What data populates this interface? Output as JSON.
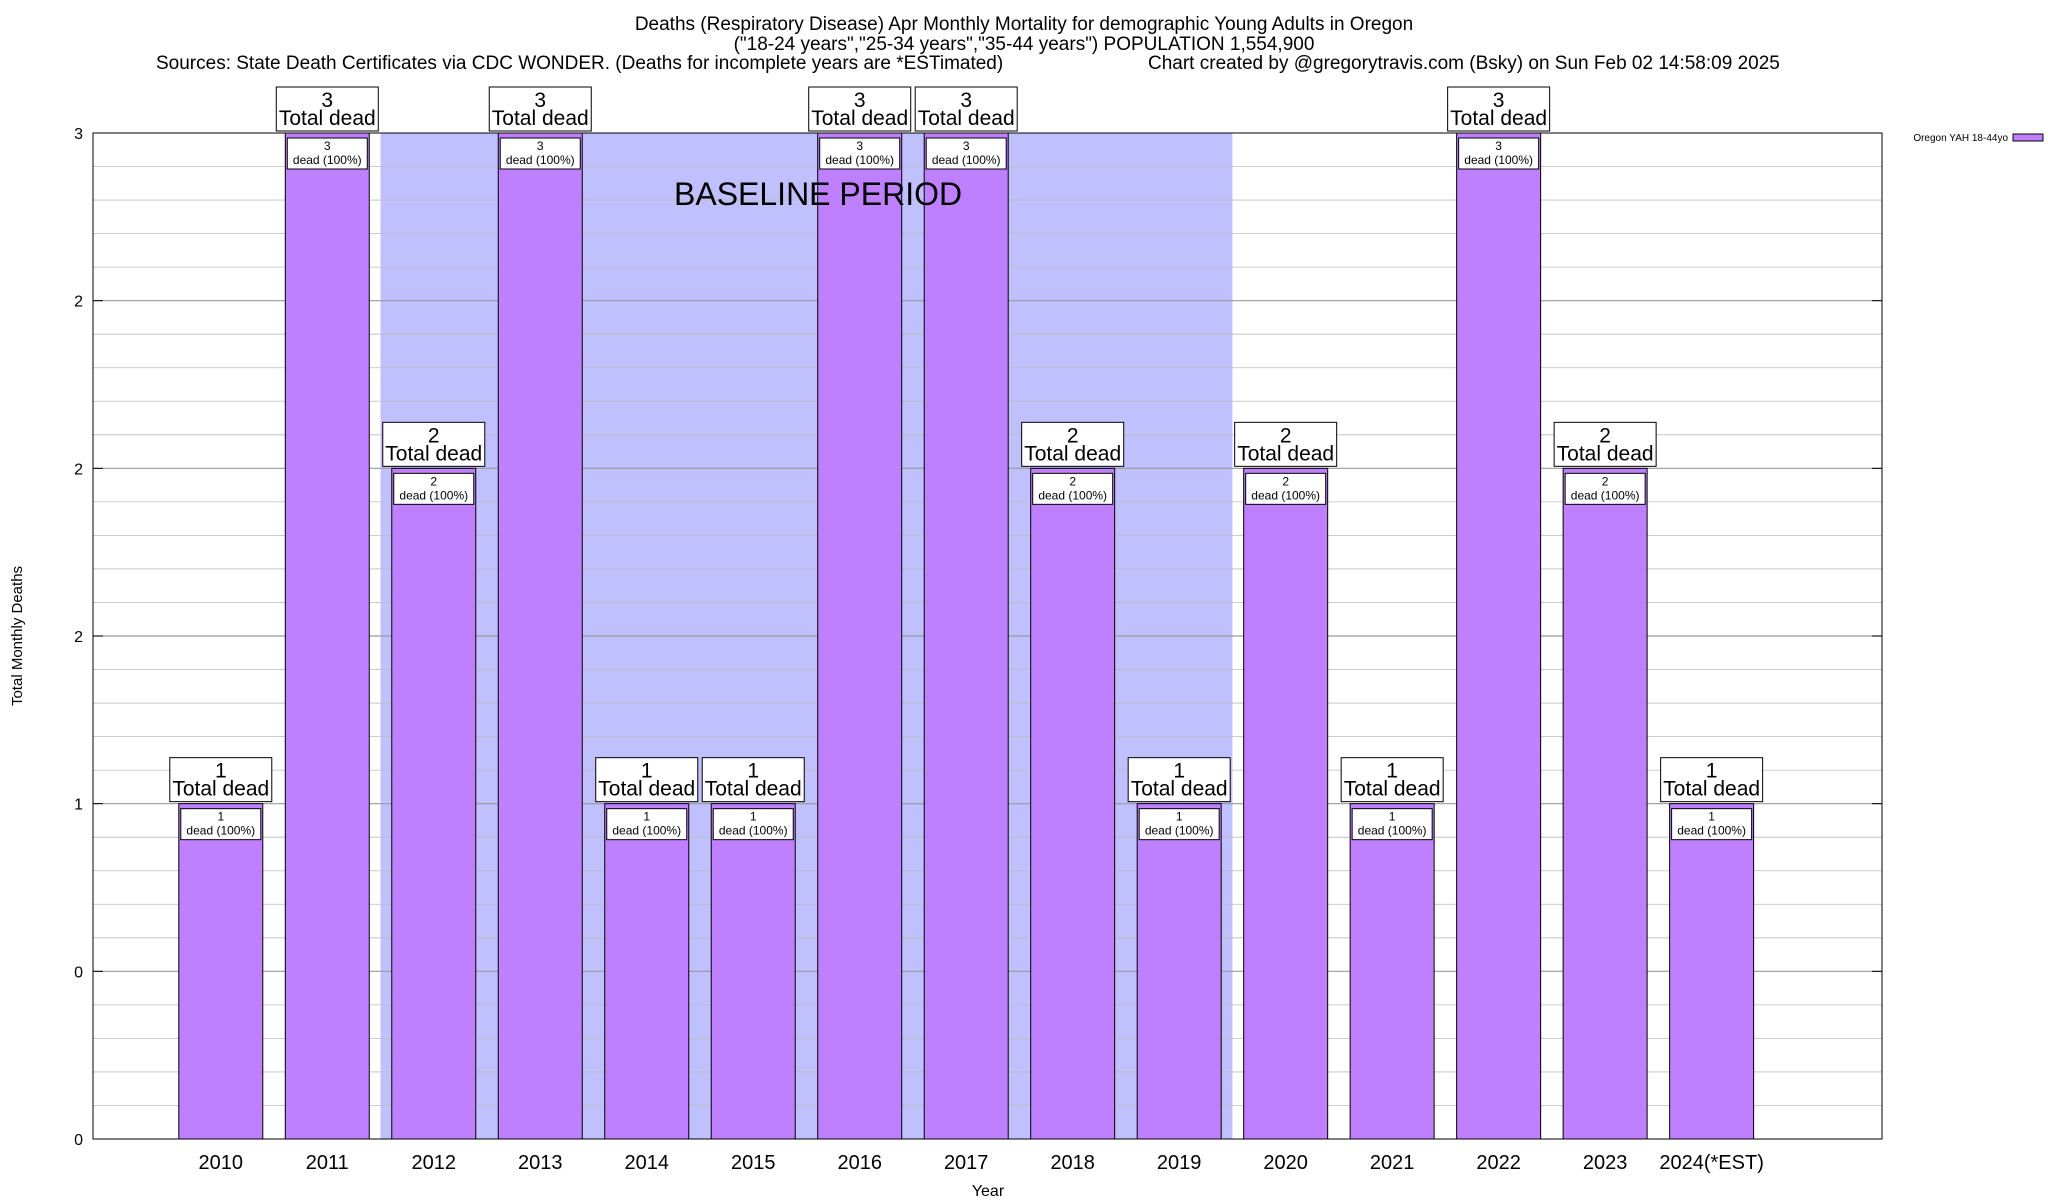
{
  "chart_data": {
    "type": "bar",
    "title": "Deaths (Respiratory Disease) Apr Monthly Mortality for demographic Young Adults in Oregon",
    "subtitle": "(\"18-24 years\",\"25-34 years\",\"35-44 years\") POPULATION 1,554,900",
    "source_left": "Sources: State Death Certificates via CDC WONDER. (Deaths for incomplete years are *ESTimated)",
    "source_right": "Chart created by @gregorytravis.com (Bsky) on Sun Feb 02 14:58:09 2025",
    "xlabel": "Year",
    "ylabel": "Total Monthly Deaths",
    "ylim": [
      0,
      3
    ],
    "y_ticks": [
      {
        "value": 0,
        "label": "0"
      },
      {
        "value": 0.5,
        "label": "0"
      },
      {
        "value": 1,
        "label": "1"
      },
      {
        "value": 1.5,
        "label": "2"
      },
      {
        "value": 2,
        "label": "2"
      },
      {
        "value": 2.5,
        "label": "2"
      },
      {
        "value": 3,
        "label": "3"
      }
    ],
    "grid": true,
    "legend": {
      "position": "top-right",
      "entries": [
        {
          "name": "Oregon YAH 18-44yo",
          "color": "#bf80ff"
        }
      ]
    },
    "categories": [
      "2010",
      "2011",
      "2012",
      "2013",
      "2014",
      "2015",
      "2016",
      "2017",
      "2018",
      "2019",
      "2020",
      "2021",
      "2022",
      "2023",
      "2024(*EST)"
    ],
    "series": [
      {
        "name": "Oregon YAH 18-44yo",
        "color": "#bf80ff",
        "values": [
          1,
          3,
          2,
          3,
          1,
          1,
          3,
          3,
          2,
          1,
          2,
          1,
          3,
          2,
          1
        ]
      }
    ],
    "total_label_line": "Total dead",
    "inner_label_suffix": "dead (100%)",
    "baseline": {
      "label": "BASELINE PERIOD",
      "from": "2012",
      "to": "2019",
      "color": "#c0c0ff"
    }
  }
}
